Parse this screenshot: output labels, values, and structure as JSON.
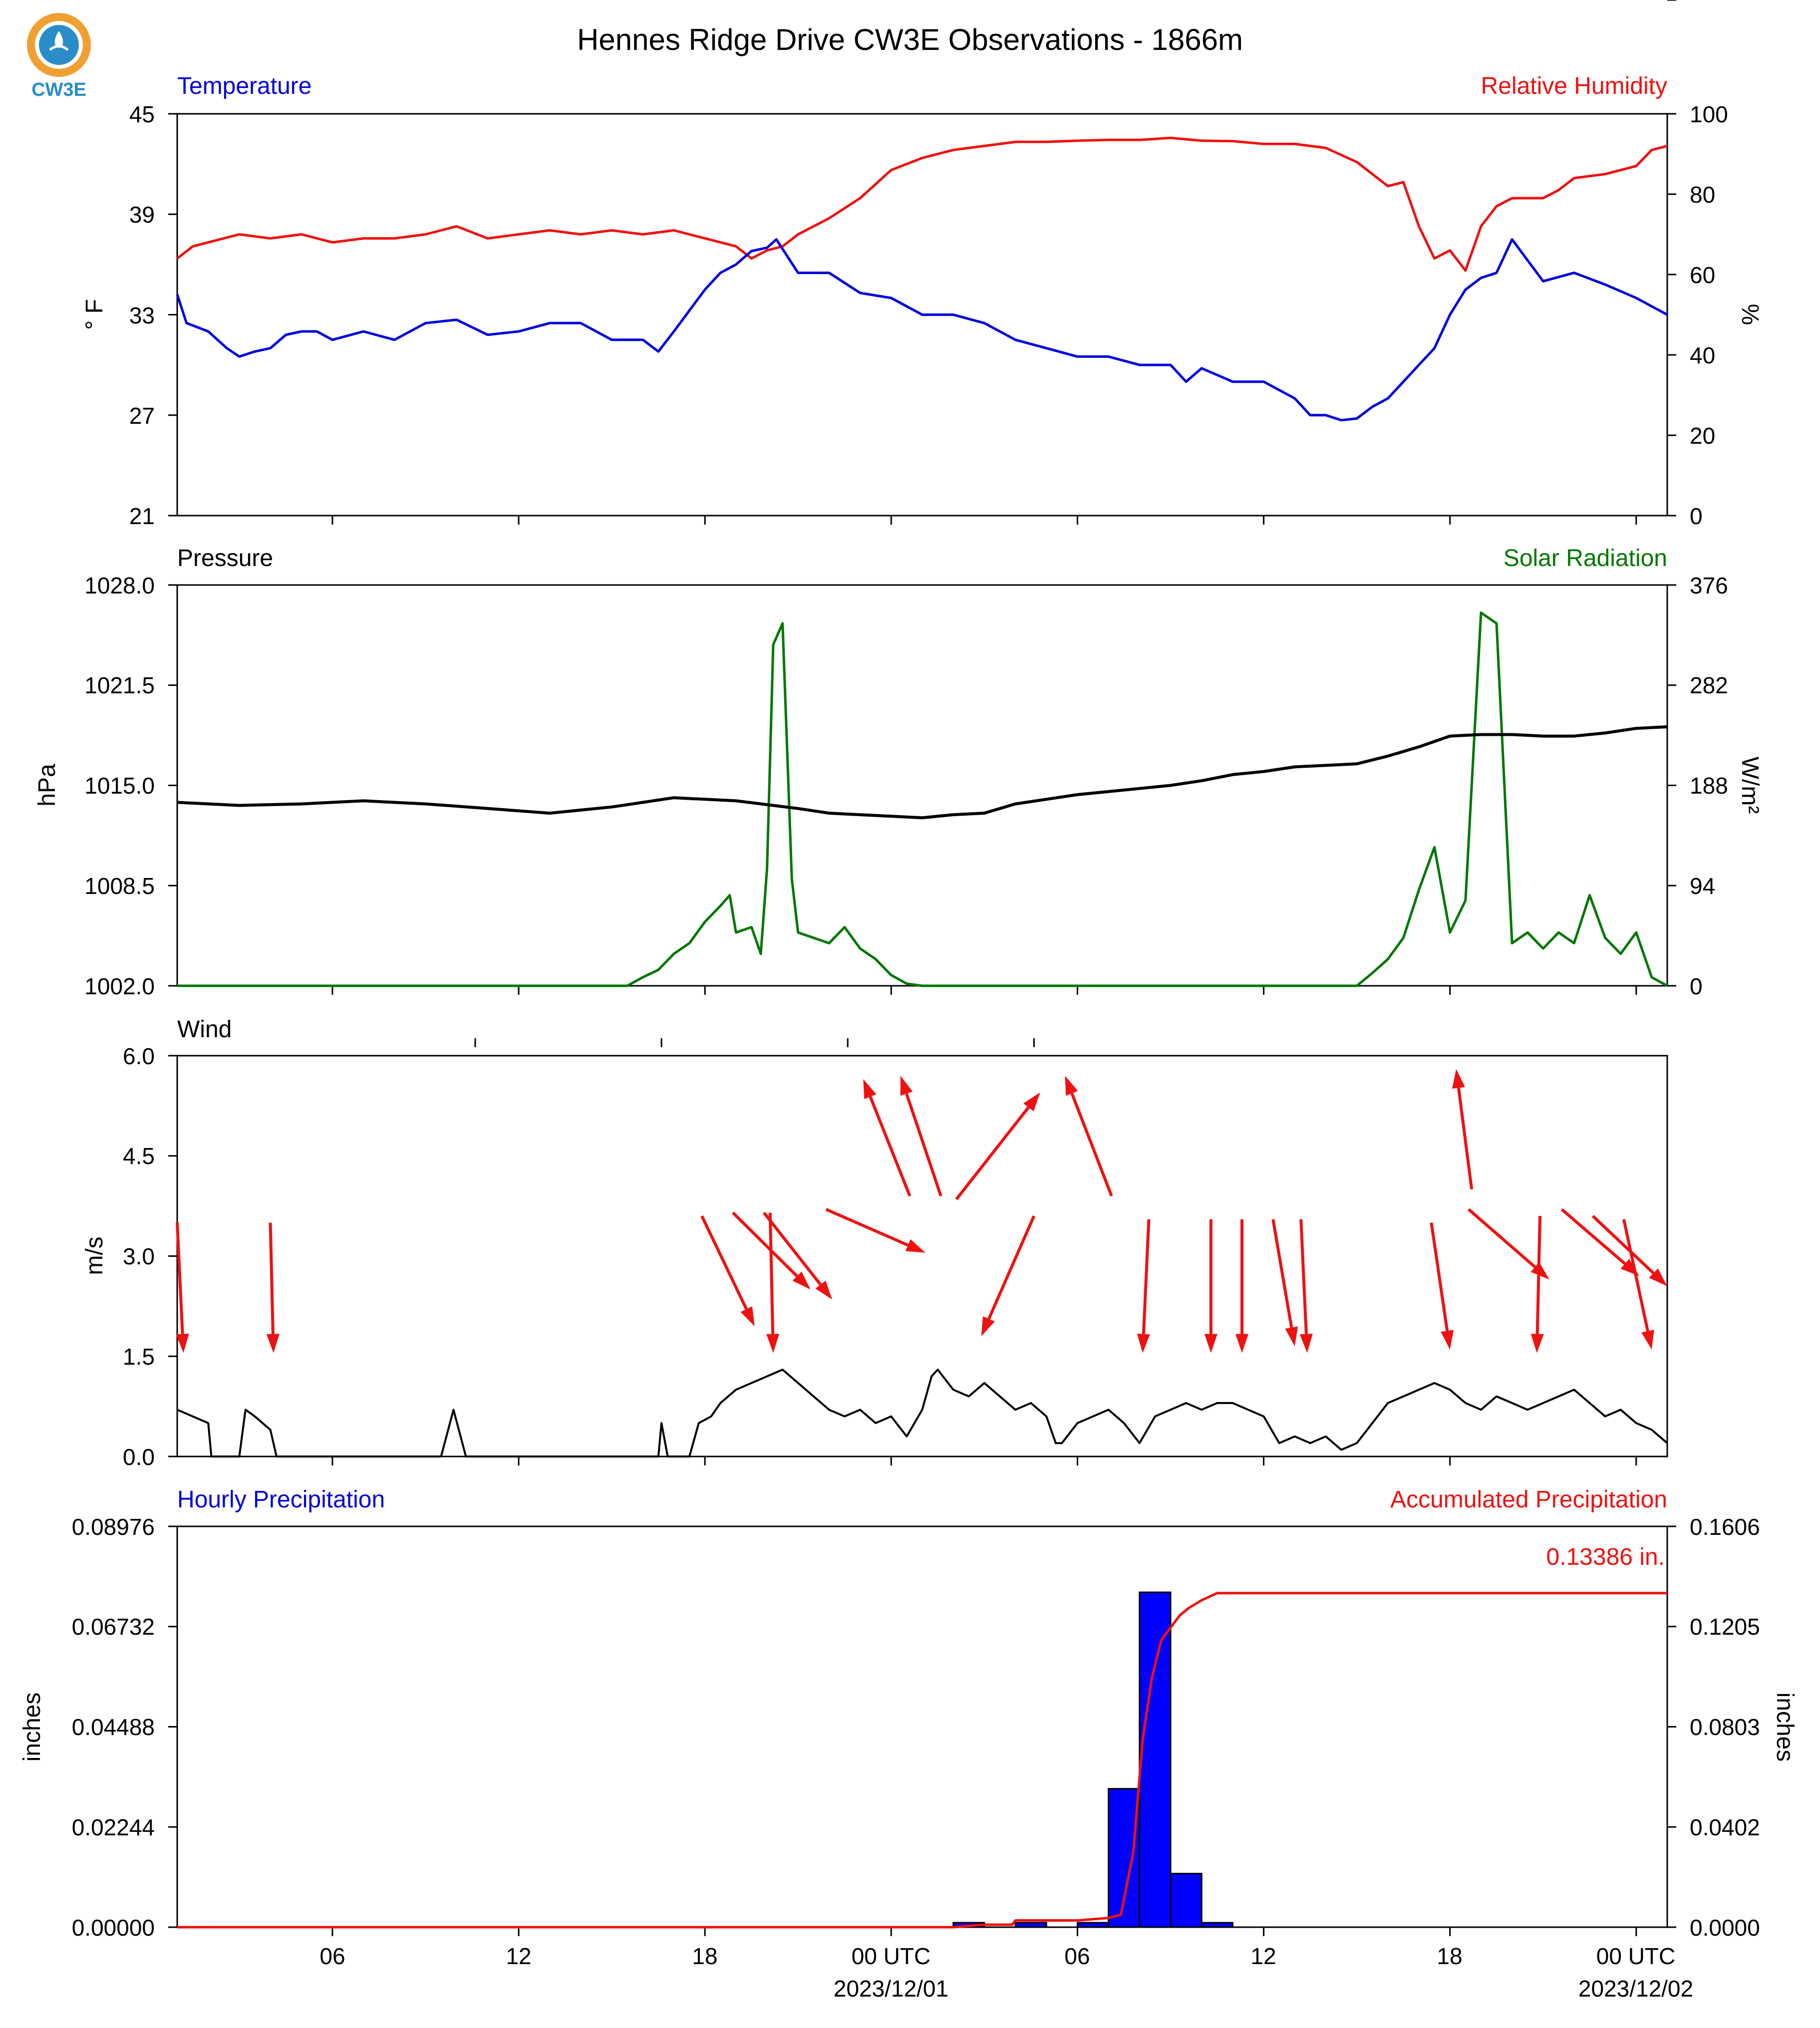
{
  "title": "Hennes Ridge Drive CW3E Observations - 1866m",
  "logo_text": "CW3E",
  "colors": {
    "temperature": "#0000dd",
    "humidity": "#ee1111",
    "solar": "#007700",
    "pressure": "#000000",
    "wind": "#000000",
    "wind_arrow": "#ee1111",
    "precip_bar": "#0000ff",
    "precip_accum": "#ee1111",
    "logo_orange": "#f0a030",
    "logo_teal": "#2a8cc8"
  },
  "x_axis": {
    "range_hours": [
      0,
      48
    ],
    "ticks": [
      {
        "h": 5,
        "label": "06"
      },
      {
        "h": 11,
        "label": "12"
      },
      {
        "h": 17,
        "label": "18"
      },
      {
        "h": 23,
        "label": "00 UTC",
        "sub": "2023/12/01"
      },
      {
        "h": 29,
        "label": "06"
      },
      {
        "h": 35,
        "label": "12"
      },
      {
        "h": 41,
        "label": "18"
      },
      {
        "h": 47,
        "label": "00 UTC",
        "sub": "2023/12/02"
      }
    ]
  },
  "panels": {
    "temperature": {
      "left_title": "Temperature",
      "right_title": "Relative Humidity",
      "left_unit": "° F",
      "right_unit": "%",
      "left_ticks": [
        "21",
        "27",
        "33",
        "39",
        "45"
      ],
      "right_ticks": [
        "0",
        "20",
        "40",
        "60",
        "80",
        "100"
      ]
    },
    "pressure": {
      "left_title": "Pressure",
      "right_title": "Solar Radiation",
      "left_unit": "hPa",
      "right_unit": "W/m²",
      "left_ticks": [
        "1002.0",
        "1008.5",
        "1015.0",
        "1021.5",
        "1028.0"
      ],
      "right_ticks": [
        "0",
        "94",
        "188",
        "282",
        "376"
      ]
    },
    "wind": {
      "left_title": "Wind",
      "left_unit": "m/s",
      "left_ticks": [
        "0.0",
        "1.5",
        "3.0",
        "4.5",
        "6.0"
      ]
    },
    "precip": {
      "left_title": "Hourly Precipitation",
      "right_title": "Accumulated Precipitation",
      "left_unit": "inches",
      "right_unit": "inches",
      "left_ticks": [
        "0.00000",
        "0.02244",
        "0.04488",
        "0.06732",
        "0.08976"
      ],
      "right_ticks": [
        "0.0000",
        "0.0402",
        "0.0803",
        "0.1205",
        "0.1606"
      ],
      "total_label": "0.13386 in."
    }
  },
  "chart_data": [
    {
      "type": "line",
      "title": "Temperature / Relative Humidity",
      "series": [
        {
          "name": "Temperature",
          "axis": "left",
          "ylim": [
            21,
            45
          ],
          "x": [
            0,
            0.3,
            1,
            1.6,
            2,
            2.5,
            3,
            3.5,
            4,
            4.5,
            5,
            6,
            7,
            8,
            9,
            10,
            11,
            12,
            13,
            14,
            15,
            15.5,
            16,
            17,
            17.5,
            18,
            18.5,
            19,
            19.3,
            20,
            21,
            22,
            23,
            24,
            25,
            26,
            27,
            28,
            29,
            30,
            31,
            32,
            32.5,
            33,
            34,
            35,
            36,
            36.5,
            37,
            37.5,
            38,
            38.5,
            39,
            40,
            40.5,
            41,
            41.5,
            42,
            42.5,
            43,
            44,
            45,
            46,
            47,
            48
          ],
          "y": [
            34.2,
            32.5,
            32,
            31,
            30.5,
            30.8,
            31,
            31.8,
            32,
            32,
            31.5,
            32,
            31.5,
            32.5,
            32.7,
            31.8,
            32,
            32.5,
            32.5,
            31.5,
            31.5,
            30.8,
            32,
            34.5,
            35.5,
            36,
            36.8,
            37,
            37.5,
            35.5,
            35.5,
            34.3,
            34,
            33,
            33,
            32.5,
            31.5,
            31,
            30.5,
            30.5,
            30,
            30,
            29,
            29.8,
            29,
            29,
            28,
            27,
            27,
            26.7,
            26.8,
            27.5,
            28,
            30,
            31,
            33,
            34.5,
            35.2,
            35.5,
            37.5,
            35,
            35.5,
            34.8,
            34,
            33
          ]
        },
        {
          "name": "Relative Humidity",
          "axis": "right",
          "ylim": [
            0,
            100
          ],
          "x": [
            0,
            0.5,
            1,
            2,
            3,
            4,
            5,
            6,
            7,
            8,
            9,
            10,
            11,
            12,
            13,
            14,
            15,
            16,
            17,
            17.5,
            18,
            18.5,
            19,
            19.5,
            20,
            21,
            22,
            23,
            24,
            25,
            26,
            27,
            28,
            29,
            30,
            31,
            32,
            33,
            34,
            35,
            36,
            37,
            38,
            39,
            39.5,
            40,
            40.5,
            41,
            41.5,
            42,
            42.5,
            43,
            44,
            44.5,
            45,
            46,
            47,
            47.5,
            48
          ],
          "y": [
            64,
            67,
            68,
            70,
            69,
            70,
            68,
            69,
            69,
            70,
            72,
            69,
            70,
            71,
            70,
            71,
            70,
            71,
            69,
            68,
            67,
            64,
            66,
            67,
            70,
            74,
            79,
            86,
            89,
            91,
            92,
            93,
            93,
            93.3,
            93.5,
            93.5,
            94,
            93.3,
            93.2,
            92.5,
            92.5,
            91.5,
            88,
            82,
            83,
            72,
            64,
            66,
            61,
            72,
            77,
            79,
            79,
            81,
            84,
            85,
            87,
            91,
            92
          ]
        }
      ]
    },
    {
      "type": "line",
      "title": "Pressure / Solar Radiation",
      "series": [
        {
          "name": "Pressure",
          "axis": "left",
          "ylim": [
            1002,
            1028
          ],
          "x": [
            0,
            2,
            4,
            6,
            8,
            10,
            12,
            14,
            15,
            16,
            18,
            20,
            21,
            22,
            23,
            24,
            25,
            26,
            27,
            28,
            29,
            30,
            31,
            32,
            33,
            34,
            35,
            36,
            37,
            38,
            39,
            40,
            41,
            42,
            43,
            44,
            45,
            46,
            47,
            48
          ],
          "y": [
            1013.9,
            1013.7,
            1013.8,
            1014,
            1013.8,
            1013.5,
            1013.2,
            1013.6,
            1013.9,
            1014.2,
            1014,
            1013.5,
            1013.2,
            1013.1,
            1013,
            1012.9,
            1013.1,
            1013.2,
            1013.8,
            1014.1,
            1014.4,
            1014.6,
            1014.8,
            1015,
            1015.3,
            1015.7,
            1015.9,
            1016.2,
            1016.3,
            1016.4,
            1016.9,
            1017.5,
            1018.2,
            1018.3,
            1018.3,
            1018.2,
            1018.2,
            1018.4,
            1018.7,
            1018.8
          ]
        },
        {
          "name": "Solar Radiation",
          "axis": "right",
          "ylim": [
            0,
            376
          ],
          "x": [
            0,
            14.5,
            15,
            15.5,
            16,
            16.5,
            17,
            17.5,
            17.8,
            18,
            18.5,
            18.8,
            19,
            19.2,
            19.5,
            19.8,
            20,
            20.5,
            21,
            21.5,
            22,
            22.5,
            23,
            23.5,
            24,
            38,
            38.5,
            39,
            39.5,
            40,
            40.5,
            41,
            41.5,
            42,
            42.5,
            43,
            43.5,
            44,
            44.5,
            45,
            45.5,
            46,
            46.5,
            47,
            47.5,
            48
          ],
          "y": [
            0,
            0,
            8,
            15,
            30,
            40,
            60,
            75,
            85,
            50,
            55,
            30,
            110,
            320,
            340,
            100,
            50,
            45,
            40,
            55,
            35,
            25,
            10,
            2,
            0,
            0,
            12,
            25,
            45,
            90,
            130,
            50,
            80,
            350,
            340,
            40,
            50,
            35,
            50,
            40,
            85,
            45,
            30,
            50,
            8,
            0
          ]
        }
      ]
    },
    {
      "type": "line",
      "title": "Wind",
      "series": [
        {
          "name": "Wind speed",
          "ylim": [
            0,
            6
          ],
          "x": [
            0,
            0.5,
            1,
            1.1,
            2,
            2.2,
            2.5,
            3,
            3.2,
            8.5,
            8.9,
            9.3,
            15.5,
            15.6,
            15.8,
            16.5,
            16.8,
            17.2,
            17.5,
            18,
            18.5,
            19,
            19.5,
            20,
            20.5,
            21,
            21.5,
            22,
            22.5,
            23,
            23.5,
            24,
            24.3,
            24.5,
            25,
            25.5,
            26,
            26.5,
            27,
            27.5,
            28,
            28.3,
            28.5,
            29,
            29.5,
            30,
            30.5,
            31,
            31.5,
            32,
            32.5,
            33,
            33.5,
            34,
            34.5,
            35,
            35.5,
            36,
            36.5,
            37,
            37.5,
            38,
            38.5,
            39,
            39.5,
            40,
            40.5,
            41,
            41.5,
            42,
            42.5,
            43,
            43.5,
            44,
            44.5,
            45,
            45.5,
            46,
            46.5,
            47,
            47.5,
            48
          ],
          "y": [
            0.7,
            0.6,
            0.5,
            0,
            0,
            0.7,
            0.6,
            0.4,
            0,
            0,
            0.7,
            0,
            0,
            0.5,
            0,
            0,
            0.5,
            0.6,
            0.8,
            1.0,
            1.1,
            1.2,
            1.3,
            1.1,
            0.9,
            0.7,
            0.6,
            0.7,
            0.5,
            0.6,
            0.3,
            0.7,
            1.2,
            1.3,
            1.0,
            0.9,
            1.1,
            0.9,
            0.7,
            0.8,
            0.6,
            0.2,
            0.2,
            0.5,
            0.6,
            0.7,
            0.5,
            0.2,
            0.6,
            0.7,
            0.8,
            0.7,
            0.8,
            0.8,
            0.7,
            0.6,
            0.2,
            0.3,
            0.2,
            0.3,
            0.1,
            0.2,
            0.5,
            0.8,
            0.9,
            1.0,
            1.1,
            1.0,
            0.8,
            0.7,
            0.9,
            0.8,
            0.7,
            0.8,
            0.9,
            1.0,
            0.8,
            0.6,
            0.7,
            0.5,
            0.4,
            0.2
          ]
        },
        {
          "name": "Wind arrows",
          "arrows": [
            [
              0,
              3.5,
              0.2,
              1.55
            ],
            [
              3,
              3.5,
              3.1,
              1.55
            ],
            [
              16.9,
              3.6,
              18.6,
              1.95
            ],
            [
              17.9,
              3.65,
              20.4,
              2.5
            ],
            [
              18.9,
              3.65,
              21.1,
              2.35
            ],
            [
              19.1,
              3.65,
              19.2,
              1.55
            ],
            [
              20.9,
              3.7,
              24.1,
              3.05
            ],
            [
              23.6,
              3.9,
              22.1,
              5.65
            ],
            [
              24.6,
              3.9,
              23.3,
              5.7
            ],
            [
              25.1,
              3.85,
              27.8,
              5.45
            ],
            [
              27.6,
              3.6,
              25.9,
              1.8
            ],
            [
              30.1,
              3.9,
              28.6,
              5.7
            ],
            [
              31.3,
              3.55,
              31.1,
              1.55
            ],
            [
              33.3,
              3.55,
              33.3,
              1.55
            ],
            [
              34.3,
              3.55,
              34.3,
              1.55
            ],
            [
              35.3,
              3.55,
              36,
              1.65
            ],
            [
              36.2,
              3.55,
              36.4,
              1.55
            ],
            [
              40.4,
              3.5,
              41,
              1.6
            ],
            [
              41.7,
              4,
              41.2,
              5.8
            ],
            [
              41.6,
              3.7,
              44.2,
              2.65
            ],
            [
              43.9,
              3.6,
              43.8,
              1.55
            ],
            [
              44.6,
              3.7,
              47.1,
              2.7
            ],
            [
              45.6,
              3.6,
              48,
              2.55
            ],
            [
              46.6,
              3.55,
              47.5,
              1.6
            ]
          ]
        }
      ]
    },
    {
      "type": "bar",
      "title": "Precipitation",
      "series": [
        {
          "name": "Hourly Precipitation",
          "axis": "left",
          "ylim": [
            0,
            0.08976
          ],
          "bars": [
            {
              "start": 25,
              "value": 0.001
            },
            {
              "start": 27,
              "value": 0.001
            },
            {
              "start": 29,
              "value": 0.001
            },
            {
              "start": 30,
              "value": 0.031
            },
            {
              "start": 31,
              "value": 0.075
            },
            {
              "start": 32,
              "value": 0.012
            },
            {
              "start": 33,
              "value": 0.001
            }
          ]
        },
        {
          "name": "Accumulated Precipitation",
          "axis": "right",
          "ylim": [
            0,
            0.1606
          ],
          "x": [
            0,
            25,
            26,
            26.9,
            27,
            29,
            30,
            30.4,
            30.8,
            31.1,
            31.4,
            31.7,
            32,
            32.3,
            32.6,
            33,
            33.5,
            48
          ],
          "y": [
            0,
            0,
            0.001,
            0.001,
            0.0027,
            0.0027,
            0.0037,
            0.005,
            0.03,
            0.075,
            0.1,
            0.115,
            0.12,
            0.125,
            0.128,
            0.131,
            0.13386,
            0.13386
          ]
        }
      ]
    }
  ]
}
